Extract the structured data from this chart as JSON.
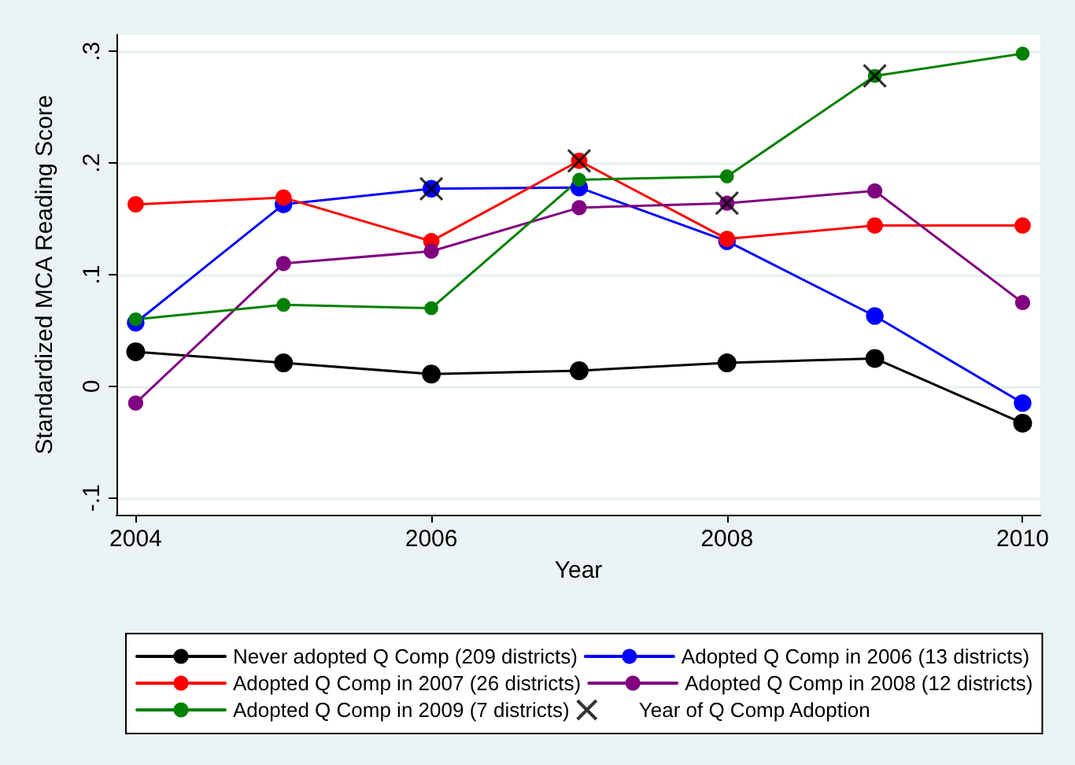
{
  "chart_data": {
    "type": "line",
    "xlabel": "Year",
    "ylabel": "Standardized MCA Reading Score",
    "x": [
      2004,
      2005,
      2006,
      2007,
      2008,
      2009,
      2010
    ],
    "xlim": [
      2003.87,
      2010.12
    ],
    "xticks": [
      2004,
      2006,
      2008,
      2010
    ],
    "ylim": [
      -0.115,
      0.315
    ],
    "yticks": [
      {
        "value": -0.1,
        "label": "-.1"
      },
      {
        "value": 0,
        "label": "0"
      },
      {
        "value": 0.1,
        "label": ".1"
      },
      {
        "value": 0.2,
        "label": ".2"
      },
      {
        "value": 0.3,
        "label": ".3"
      }
    ],
    "grid": "y",
    "legend": "bottom",
    "marker": "circle",
    "line_style": "solid",
    "series": [
      {
        "name": "Never adopted Q Comp (209 districts)",
        "color": "#000000",
        "values": [
          0.031,
          0.021,
          0.011,
          0.014,
          0.021,
          0.025,
          -0.033
        ]
      },
      {
        "name": "Adopted Q Comp in 2006 (13 districts)",
        "color": "#0000ff",
        "values": [
          0.057,
          0.163,
          0.177,
          0.178,
          0.13,
          0.063,
          -0.015
        ]
      },
      {
        "name": "Adopted Q Comp in 2007 (26 districts)",
        "color": "#ff0000",
        "values": [
          0.163,
          0.169,
          0.13,
          0.202,
          0.132,
          0.144,
          0.144
        ]
      },
      {
        "name": "Adopted Q Comp in 2008 (12 districts)",
        "color": "#800080",
        "values": [
          -0.015,
          0.11,
          0.121,
          0.16,
          0.164,
          0.175,
          0.075
        ]
      },
      {
        "name": "Adopted Q Comp in 2009 (7 districts)",
        "color": "#008000",
        "values": [
          0.06,
          0.073,
          0.07,
          0.185,
          0.188,
          0.278,
          0.298
        ]
      },
      {
        "name": "Year of Q Comp Adoption",
        "type": "scatter",
        "marker": "cross",
        "color": "#000000",
        "x": [
          2006,
          2007,
          2008,
          2009
        ],
        "values": [
          0.177,
          0.202,
          0.164,
          0.278
        ]
      }
    ]
  }
}
